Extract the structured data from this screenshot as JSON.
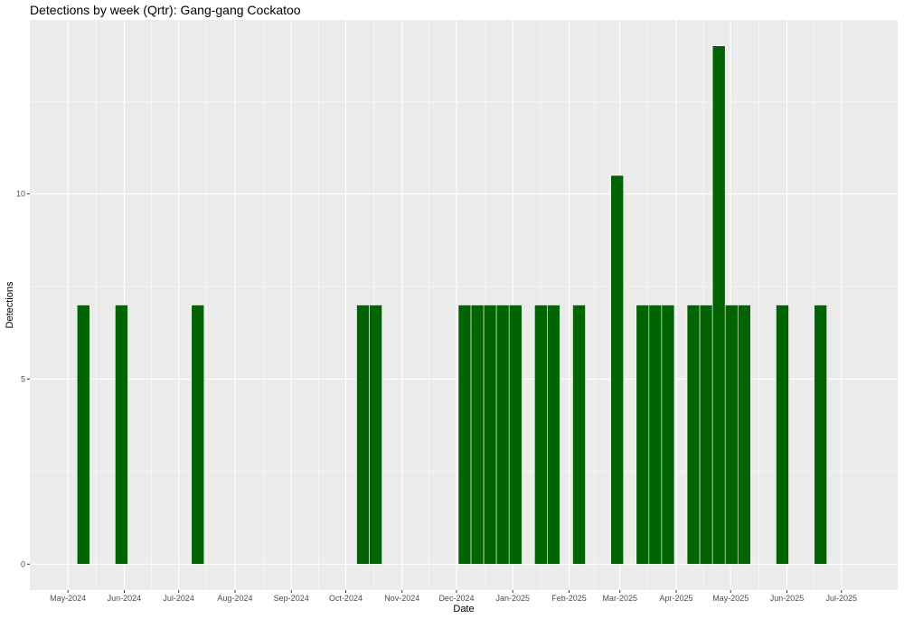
{
  "chart_data": {
    "type": "bar",
    "title": "Detections by week (Qrtr): Gang-gang Cockatoo",
    "xlabel": "Date",
    "ylabel": "Detections",
    "x_axis": {
      "type": "date",
      "range": [
        "2024-04-10",
        "2025-08-01"
      ],
      "ticks": [
        {
          "date": "2024-05-01",
          "label": "May-2024"
        },
        {
          "date": "2024-06-01",
          "label": "Jun-2024"
        },
        {
          "date": "2024-07-01",
          "label": "Jul-2024"
        },
        {
          "date": "2024-08-01",
          "label": "Aug-2024"
        },
        {
          "date": "2024-09-01",
          "label": "Sep-2024"
        },
        {
          "date": "2024-10-01",
          "label": "Oct-2024"
        },
        {
          "date": "2024-11-01",
          "label": "Nov-2024"
        },
        {
          "date": "2024-12-01",
          "label": "Dec-2024"
        },
        {
          "date": "2025-01-01",
          "label": "Jan-2025"
        },
        {
          "date": "2025-02-01",
          "label": "Feb-2025"
        },
        {
          "date": "2025-03-01",
          "label": "Mar-2025"
        },
        {
          "date": "2025-04-01",
          "label": "Apr-2025"
        },
        {
          "date": "2025-05-01",
          "label": "May-2025"
        },
        {
          "date": "2025-06-01",
          "label": "Jun-2025"
        },
        {
          "date": "2025-07-01",
          "label": "Jul-2025"
        }
      ]
    },
    "y_axis": {
      "range": [
        -0.7,
        14.7
      ],
      "ticks": [
        {
          "value": 0,
          "label": "0"
        },
        {
          "value": 5,
          "label": "5"
        },
        {
          "value": 10,
          "label": "10"
        }
      ]
    },
    "grid": true,
    "bar_color": "#006400",
    "panel_color": "#ebebeb",
    "grid_color": "#ffffff",
    "bars": [
      {
        "week": "2024-05-06",
        "value": 7
      },
      {
        "week": "2024-05-27",
        "value": 7
      },
      {
        "week": "2024-07-08",
        "value": 7
      },
      {
        "week": "2024-10-07",
        "value": 7
      },
      {
        "week": "2024-10-14",
        "value": 7
      },
      {
        "week": "2024-12-02",
        "value": 7
      },
      {
        "week": "2024-12-09",
        "value": 7
      },
      {
        "week": "2024-12-16",
        "value": 7
      },
      {
        "week": "2024-12-23",
        "value": 7
      },
      {
        "week": "2024-12-30",
        "value": 7
      },
      {
        "week": "2025-01-13",
        "value": 7
      },
      {
        "week": "2025-01-20",
        "value": 7
      },
      {
        "week": "2025-02-03",
        "value": 7
      },
      {
        "week": "2025-02-24",
        "value": 10.5
      },
      {
        "week": "2025-03-10",
        "value": 7
      },
      {
        "week": "2025-03-17",
        "value": 7
      },
      {
        "week": "2025-03-24",
        "value": 7
      },
      {
        "week": "2025-04-07",
        "value": 7
      },
      {
        "week": "2025-04-14",
        "value": 7
      },
      {
        "week": "2025-04-21",
        "value": 14
      },
      {
        "week": "2025-04-28",
        "value": 7
      },
      {
        "week": "2025-05-05",
        "value": 7
      },
      {
        "week": "2025-05-26",
        "value": 7
      },
      {
        "week": "2025-06-16",
        "value": 7
      }
    ]
  }
}
